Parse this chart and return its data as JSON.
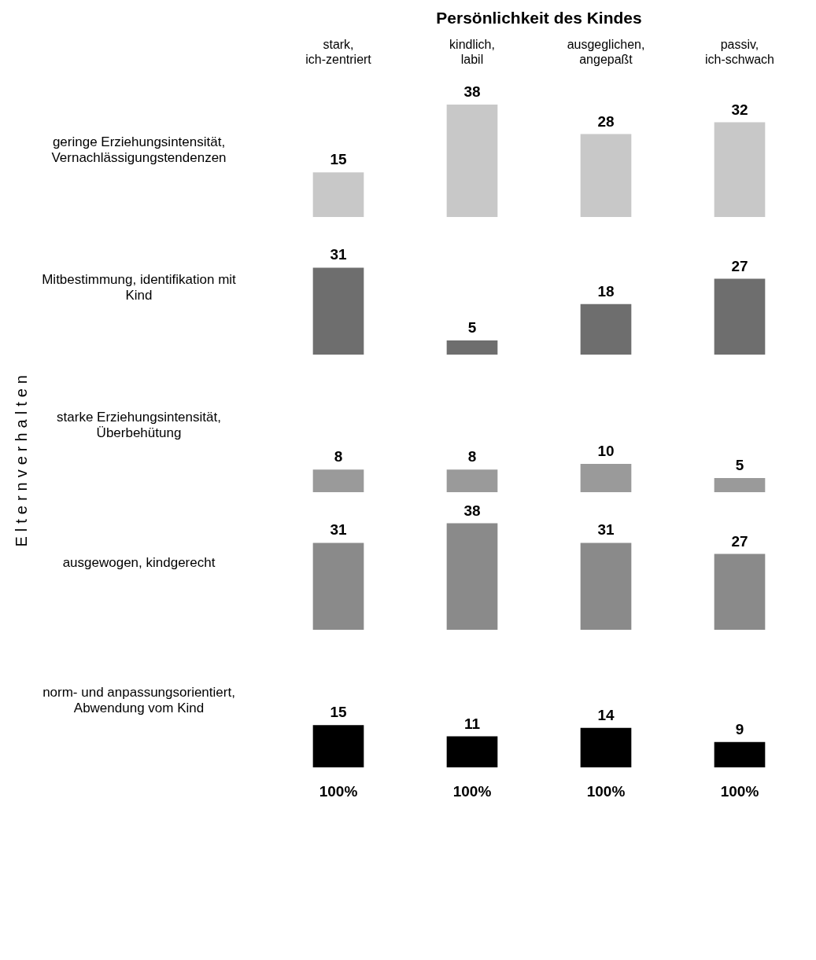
{
  "chart_data": [
    {
      "type": "bar",
      "title": "Persönlichkeit des Kindes",
      "ylabel": "geringe Erziehungsintensität, Vernachlässigungstendenzen",
      "categories": [
        "stark, ich-zentriert",
        "kindlich, labil",
        "ausgeglichen, angepaßt",
        "passiv, ich-schwach"
      ],
      "values": [
        15,
        38,
        28,
        32
      ],
      "color": "#c8c8c8",
      "data_labels": true
    },
    {
      "type": "bar",
      "ylabel": "Mitbestimmung, identifikation mit Kind",
      "categories": [
        null,
        null,
        null,
        null
      ],
      "values": [
        31,
        5,
        18,
        27
      ],
      "color": "#6e6e6e",
      "data_labels": true
    },
    {
      "type": "bar",
      "ylabel": "starke Erziehungsintensität, Überbehütung",
      "categories": [
        null,
        null,
        null,
        null
      ],
      "values": [
        8,
        8,
        10,
        5
      ],
      "color": "#9a9a9a",
      "data_labels": true
    },
    {
      "type": "bar",
      "ylabel": "ausgewogen, kindgerecht",
      "categories": [
        null,
        null,
        null,
        null
      ],
      "values": [
        31,
        38,
        31,
        27
      ],
      "color": "#8a8a8a",
      "data_labels": true
    },
    {
      "type": "bar",
      "ylabel": "norm- und anpassungsorientiert, Abwendung vom Kind",
      "categories": [
        null,
        null,
        null,
        null
      ],
      "values": [
        15,
        11,
        14,
        9
      ],
      "color": "#000000",
      "data_labels": true
    },
    {
      "type": "other",
      "ylabel": "Elternverhalten",
      "annotations": [
        "100%",
        "100%",
        "100%",
        "100%"
      ]
    }
  ]
}
